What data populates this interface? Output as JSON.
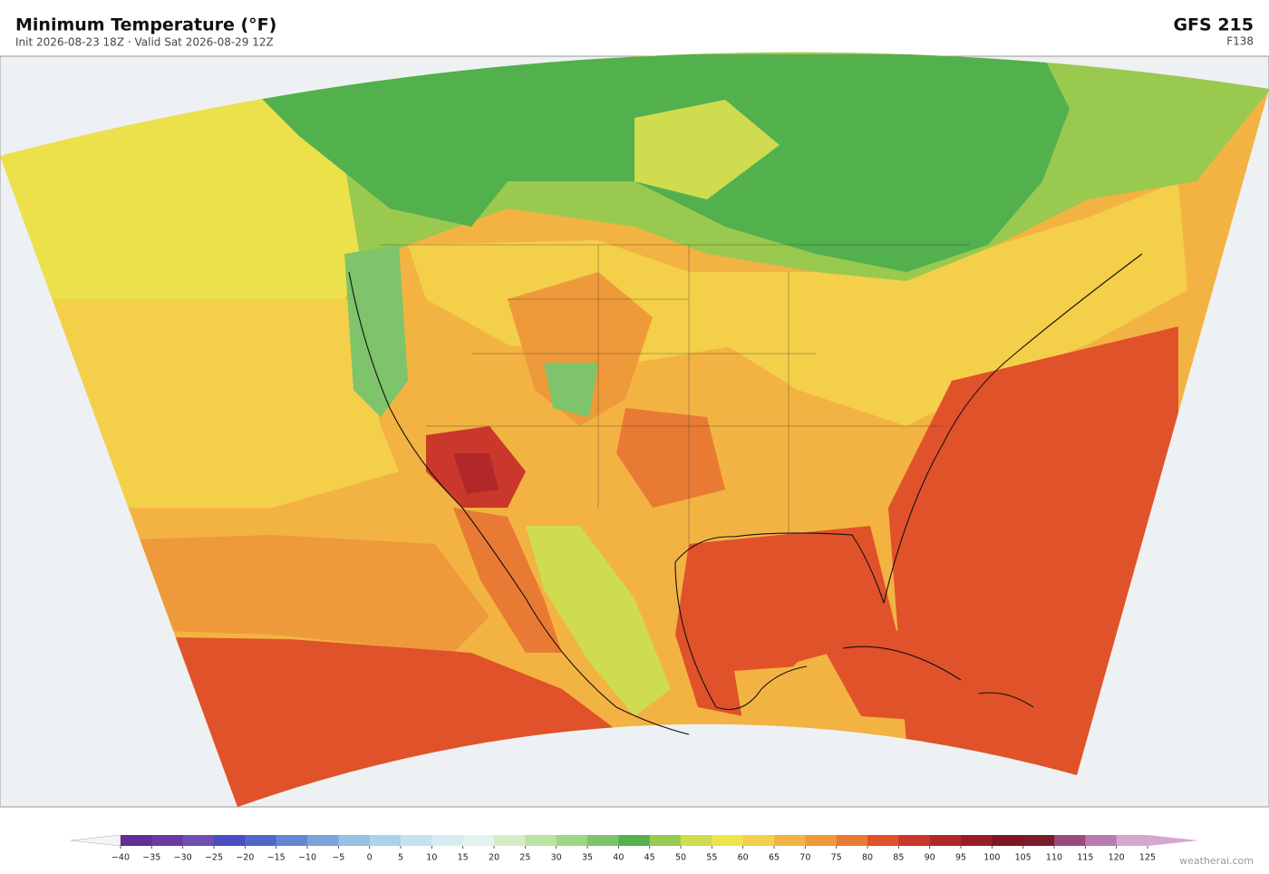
{
  "header": {
    "title": "Minimum Temperature  (°F)",
    "subtitle": "Init 2026-08-23 18Z  ·  Valid Sat 2026-08-29 12Z",
    "model": "GFS  215",
    "forecast_hour": "F138"
  },
  "colorbar": {
    "ticks": [
      {
        "value": -40,
        "label": "−40"
      },
      {
        "value": -35,
        "label": "−35"
      },
      {
        "value": -30,
        "label": "−30"
      },
      {
        "value": -25,
        "label": "−25"
      },
      {
        "value": -20,
        "label": "−20"
      },
      {
        "value": -15,
        "label": "−15"
      },
      {
        "value": -10,
        "label": "−10"
      },
      {
        "value": -5,
        "label": "−5"
      },
      0,
      5,
      10,
      15,
      20,
      25,
      30,
      35,
      40,
      45,
      50,
      55,
      60,
      65,
      70,
      75,
      80,
      85,
      90,
      95,
      100,
      105,
      110,
      115,
      120,
      125
    ],
    "colors": [
      "#5e2f94",
      "#6a3a9f",
      "#6c4fb0",
      "#4a4cbf",
      "#4f68c8",
      "#6486d4",
      "#7aa3dc",
      "#93c0e3",
      "#aad3ea",
      "#c3e2ef",
      "#d7edf2",
      "#e3f3ee",
      "#d6ecc9",
      "#bce3a3",
      "#9dd685",
      "#7ec46a",
      "#52b04d",
      "#99c94f",
      "#cfdc4f",
      "#ede44a",
      "#f4cf4a",
      "#f3b342",
      "#ee9a3a",
      "#e97a34",
      "#e0522a",
      "#c9382a",
      "#b2282a",
      "#981c24",
      "#7f1620",
      "#7a1a2a",
      "#9a4a7a",
      "#b87aaf",
      "#d6a6cf"
    ],
    "under_color": "#f4f4f4",
    "over_color": "#d6a6cf"
  },
  "footer": {
    "credit": "weatherai.com"
  }
}
